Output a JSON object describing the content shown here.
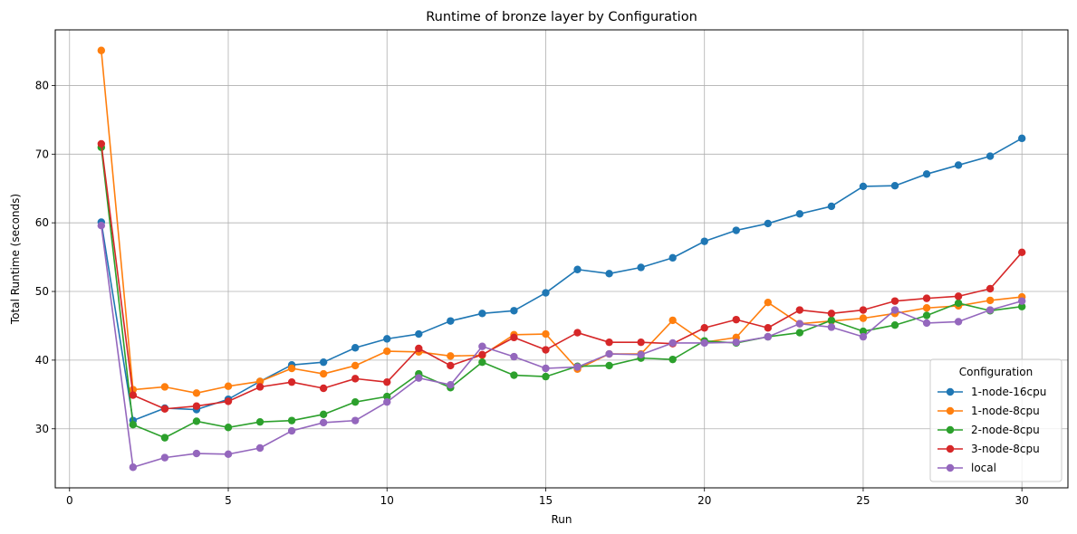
{
  "chart_data": {
    "type": "line",
    "title": "Runtime of bronze layer by Configuration",
    "xlabel": "Run",
    "ylabel": "Total Runtime (seconds)",
    "xlim": [
      -0.45,
      31.45
    ],
    "ylim": [
      21.4,
      88.1
    ],
    "x_ticks": [
      0,
      5,
      10,
      15,
      20,
      25,
      30
    ],
    "y_ticks": [
      30,
      40,
      50,
      60,
      70,
      80
    ],
    "grid": true,
    "markers": true,
    "legend_title": "Configuration",
    "legend_position": "lower-right",
    "x": [
      1,
      2,
      3,
      4,
      5,
      6,
      7,
      8,
      9,
      10,
      11,
      12,
      13,
      14,
      15,
      16,
      17,
      18,
      19,
      20,
      21,
      22,
      23,
      24,
      25,
      26,
      27,
      28,
      29,
      30
    ],
    "series": [
      {
        "name": "1-node-16cpu",
        "color": "#1f77b4",
        "values": [
          60.1,
          31.2,
          33.0,
          32.8,
          34.3,
          36.9,
          39.3,
          39.7,
          41.8,
          43.1,
          43.8,
          45.7,
          46.8,
          47.2,
          49.8,
          53.2,
          52.6,
          53.5,
          54.9,
          57.3,
          58.9,
          59.9,
          61.3,
          62.4,
          65.3,
          65.4,
          67.1,
          68.4,
          69.7,
          72.3
        ]
      },
      {
        "name": "1-node-8cpu",
        "color": "#ff7f0e",
        "values": [
          85.1,
          35.7,
          36.1,
          35.2,
          36.2,
          36.9,
          38.8,
          38.0,
          39.2,
          41.3,
          41.2,
          40.6,
          40.7,
          43.7,
          43.8,
          38.7,
          40.9,
          40.9,
          45.8,
          42.6,
          43.3,
          48.4,
          45.3,
          45.7,
          46.1,
          46.8,
          47.6,
          47.9,
          48.7,
          49.2
        ]
      },
      {
        "name": "2-node-8cpu",
        "color": "#2ca02c",
        "values": [
          71.0,
          30.6,
          28.7,
          31.1,
          30.2,
          31.0,
          31.2,
          32.1,
          33.9,
          34.7,
          38.0,
          36.0,
          39.7,
          37.8,
          37.6,
          39.1,
          39.2,
          40.3,
          40.1,
          42.8,
          42.5,
          43.4,
          44.0,
          45.8,
          44.2,
          45.1,
          46.5,
          48.3,
          47.2,
          47.8
        ]
      },
      {
        "name": "3-node-8cpu",
        "color": "#d62728",
        "values": [
          71.5,
          34.9,
          32.9,
          33.3,
          34.0,
          36.1,
          36.8,
          35.9,
          37.3,
          36.8,
          41.7,
          39.2,
          40.8,
          43.3,
          41.5,
          44.0,
          42.6,
          42.6,
          42.4,
          44.7,
          45.9,
          44.7,
          47.3,
          46.8,
          47.3,
          48.6,
          49.0,
          49.3,
          50.4,
          55.7
        ]
      },
      {
        "name": "local",
        "color": "#9467bd",
        "values": [
          59.6,
          24.4,
          25.8,
          26.4,
          26.3,
          27.2,
          29.7,
          30.9,
          31.2,
          33.9,
          37.4,
          36.4,
          42.0,
          40.5,
          38.8,
          39.0,
          40.9,
          40.8,
          42.5,
          42.5,
          42.6,
          43.4,
          45.3,
          44.8,
          43.4,
          47.3,
          45.4,
          45.6,
          47.3,
          48.6
        ]
      }
    ]
  }
}
